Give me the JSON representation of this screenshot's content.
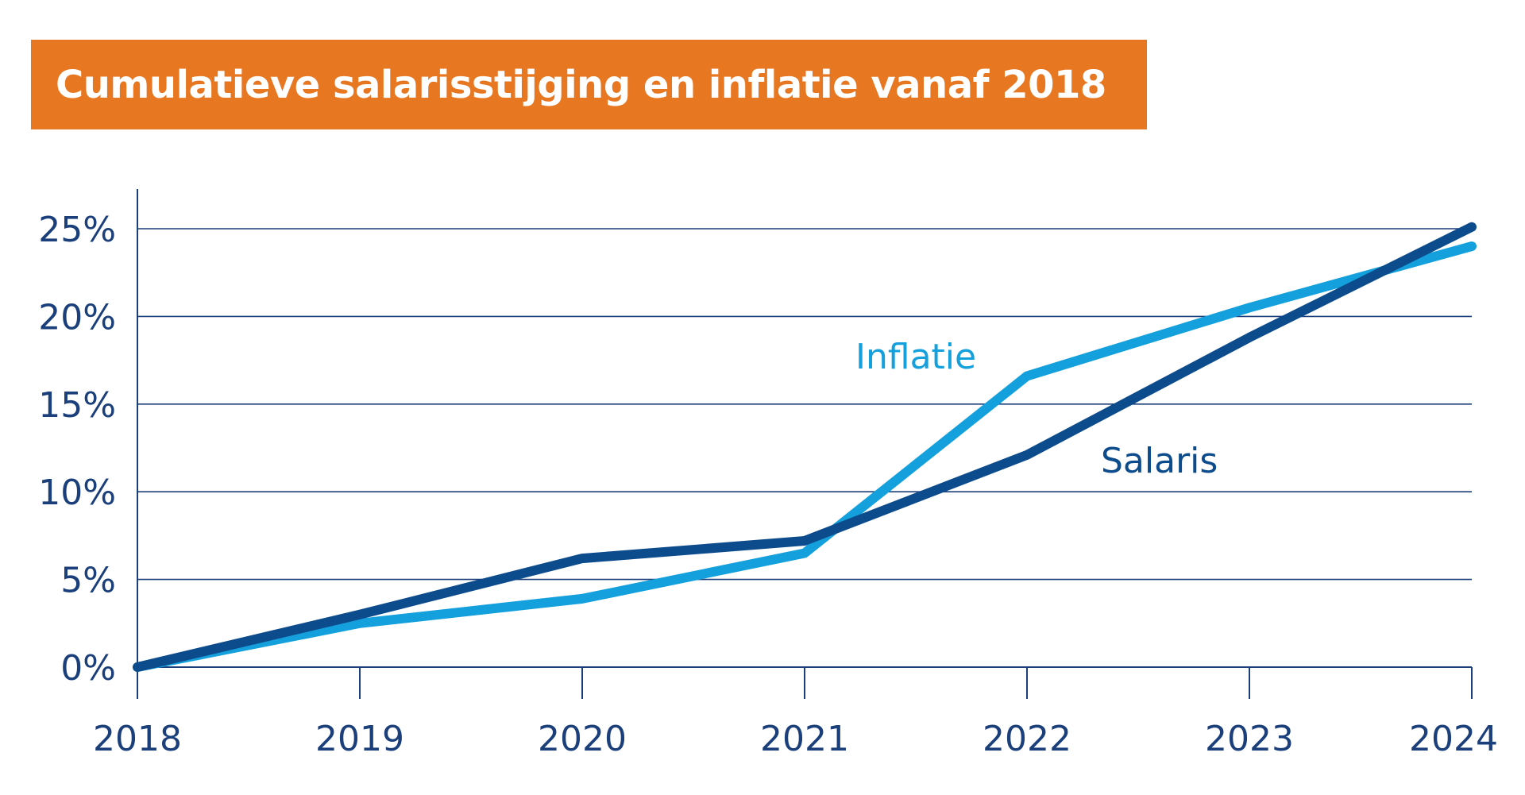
{
  "colors": {
    "title_background": "#e87722",
    "title_text": "#ffffff",
    "axis": "#1b3f7a",
    "inflatie": "#14a0dc",
    "salaris": "#0d4c8c"
  },
  "chart_data": {
    "type": "line",
    "title": "Cumulatieve salarisstijging en inflatie vanaf 2018",
    "xlabel": "",
    "ylabel": "",
    "categories": [
      "2018",
      "2019",
      "2020",
      "2021",
      "2022",
      "2023",
      "2024"
    ],
    "y_ticks": [
      0,
      5,
      10,
      15,
      20,
      25
    ],
    "y_tick_labels": [
      "0%",
      "5%",
      "10%",
      "15%",
      "20%",
      "25%"
    ],
    "ylim": [
      0,
      27
    ],
    "grid": true,
    "legend": "inline labels",
    "series": [
      {
        "name": "Inflatie",
        "values": [
          0,
          2.5,
          3.9,
          6.5,
          16.6,
          20.5,
          24.0
        ]
      },
      {
        "name": "Salaris",
        "values": [
          0,
          3.0,
          6.2,
          7.2,
          12.1,
          18.8,
          25.1
        ]
      }
    ]
  }
}
